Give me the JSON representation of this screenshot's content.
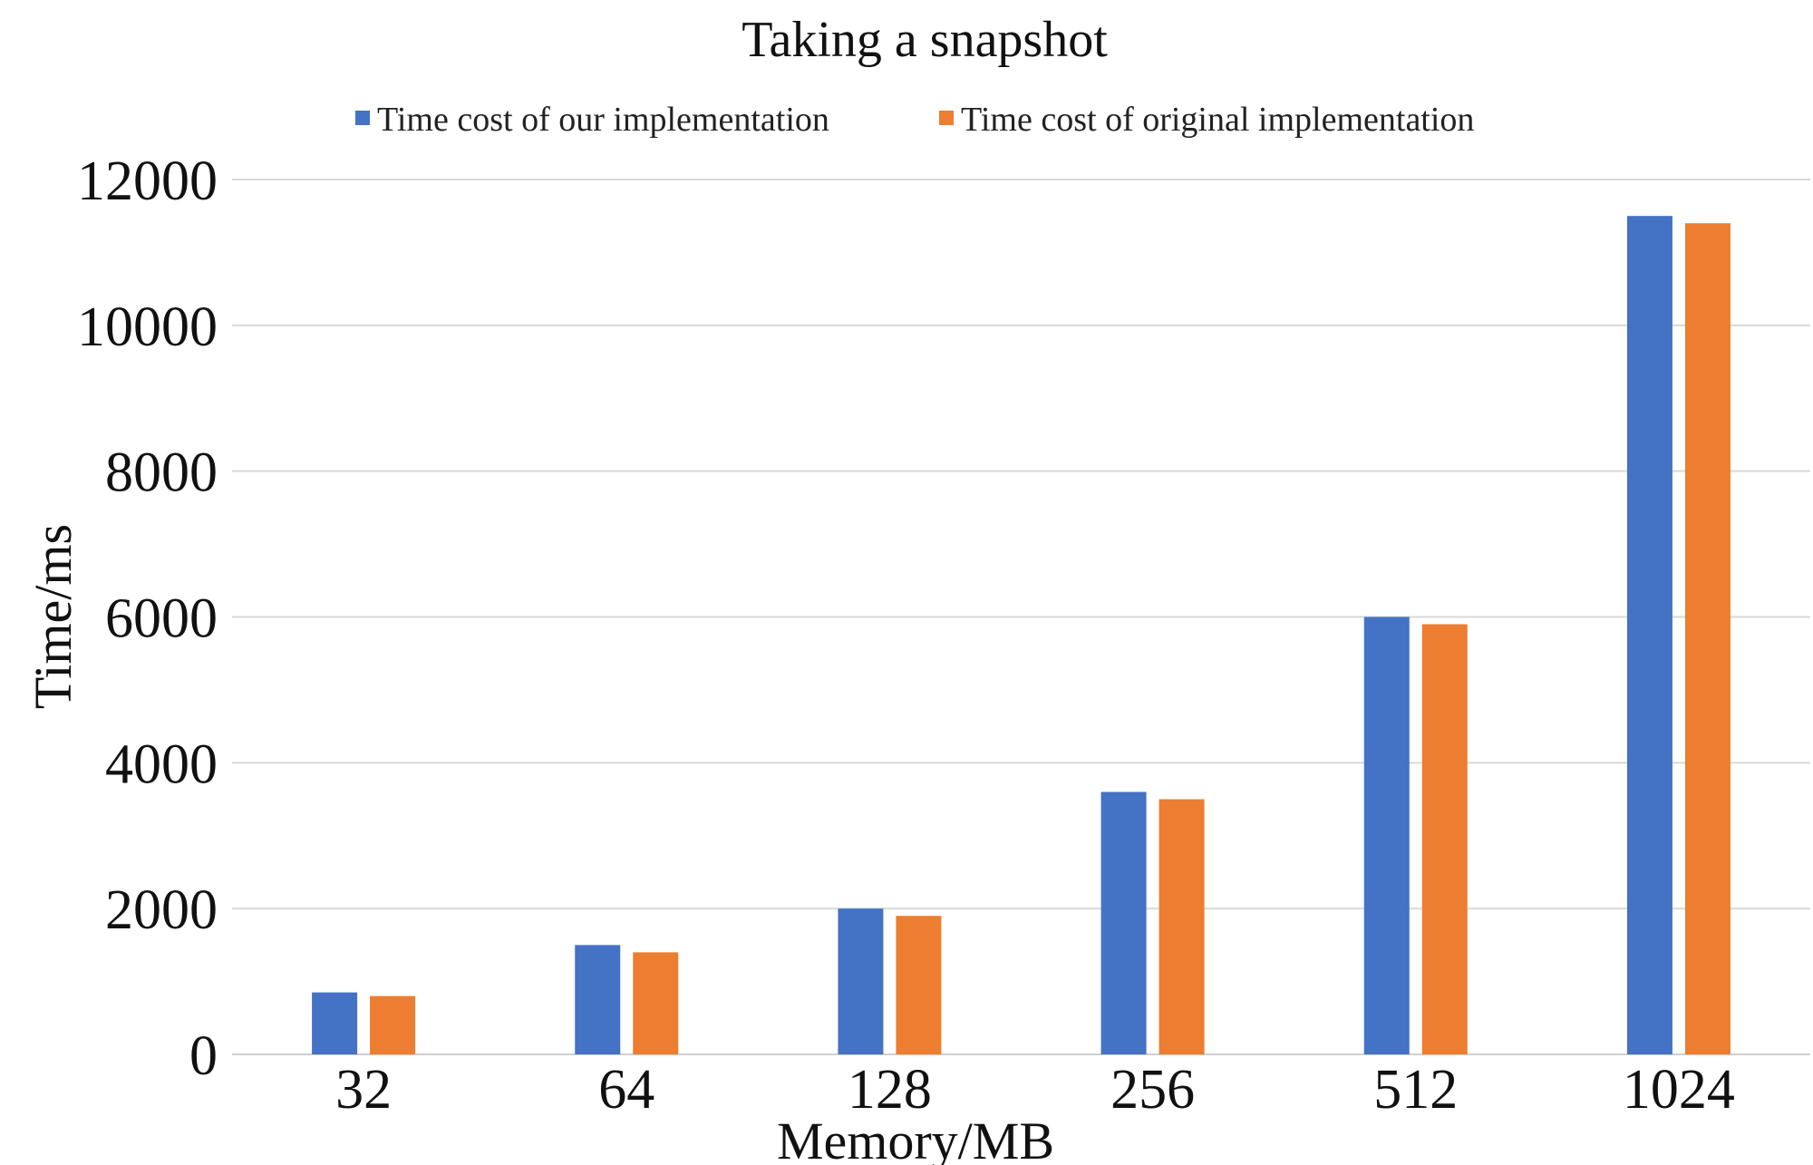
{
  "chart_data": {
    "type": "bar",
    "title": "Taking a snapshot",
    "xlabel": "Memory/MB",
    "ylabel": "Time/ms",
    "categories": [
      "32",
      "64",
      "128",
      "256",
      "512",
      "1024"
    ],
    "series": [
      {
        "name": "Time cost of our implementation",
        "color": "#4472c4",
        "values": [
          850,
          1500,
          2000,
          3600,
          6000,
          11500
        ]
      },
      {
        "name": "Time cost of original implementation",
        "color": "#ed7d31",
        "values": [
          800,
          1400,
          1900,
          3500,
          5900,
          11400
        ]
      }
    ],
    "ylim": [
      0,
      12000
    ],
    "yticks": [
      "0",
      "2000",
      "4000",
      "6000",
      "8000",
      "10000",
      "12000"
    ],
    "grid": true,
    "legend_position": "top"
  }
}
